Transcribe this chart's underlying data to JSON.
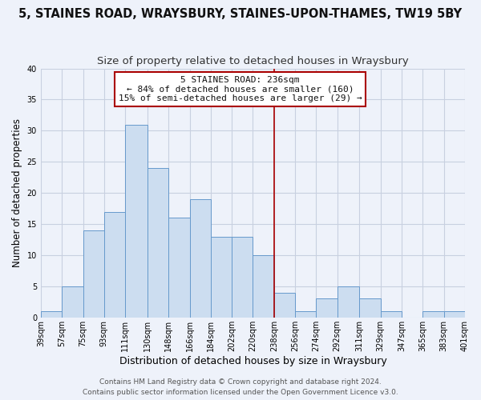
{
  "title": "5, STAINES ROAD, WRAYSBURY, STAINES-UPON-THAMES, TW19 5BY",
  "subtitle": "Size of property relative to detached houses in Wraysbury",
  "xlabel": "Distribution of detached houses by size in Wraysbury",
  "ylabel": "Number of detached properties",
  "bin_edges": [
    39,
    57,
    75,
    93,
    111,
    130,
    148,
    166,
    184,
    202,
    220,
    238,
    256,
    274,
    292,
    311,
    329,
    347,
    365,
    383,
    401
  ],
  "counts": [
    1,
    5,
    14,
    17,
    31,
    24,
    16,
    19,
    13,
    13,
    10,
    4,
    1,
    3,
    5,
    3,
    1,
    0,
    1,
    1
  ],
  "bar_color": "#ccddf0",
  "bar_edge_color": "#6699cc",
  "vline_color": "#aa0000",
  "vline_x": 238,
  "annotation_title": "5 STAINES ROAD: 236sqm",
  "annotation_line1": "← 84% of detached houses are smaller (160)",
  "annotation_line2": "15% of semi-detached houses are larger (29) →",
  "annotation_box_color": "#ffffff",
  "annotation_box_edge": "#aa0000",
  "ylim": [
    0,
    40
  ],
  "yticks": [
    0,
    5,
    10,
    15,
    20,
    25,
    30,
    35,
    40
  ],
  "tick_labels": [
    "39sqm",
    "57sqm",
    "75sqm",
    "93sqm",
    "111sqm",
    "130sqm",
    "148sqm",
    "166sqm",
    "184sqm",
    "202sqm",
    "220sqm",
    "238sqm",
    "256sqm",
    "274sqm",
    "292sqm",
    "311sqm",
    "329sqm",
    "347sqm",
    "365sqm",
    "383sqm",
    "401sqm"
  ],
  "footer1": "Contains HM Land Registry data © Crown copyright and database right 2024.",
  "footer2": "Contains public sector information licensed under the Open Government Licence v3.0.",
  "background_color": "#eef2fa",
  "grid_color": "#c8d0e0",
  "title_fontsize": 10.5,
  "subtitle_fontsize": 9.5,
  "axis_label_fontsize": 8.5,
  "tick_fontsize": 7,
  "footer_fontsize": 6.5,
  "annotation_fontsize": 8
}
